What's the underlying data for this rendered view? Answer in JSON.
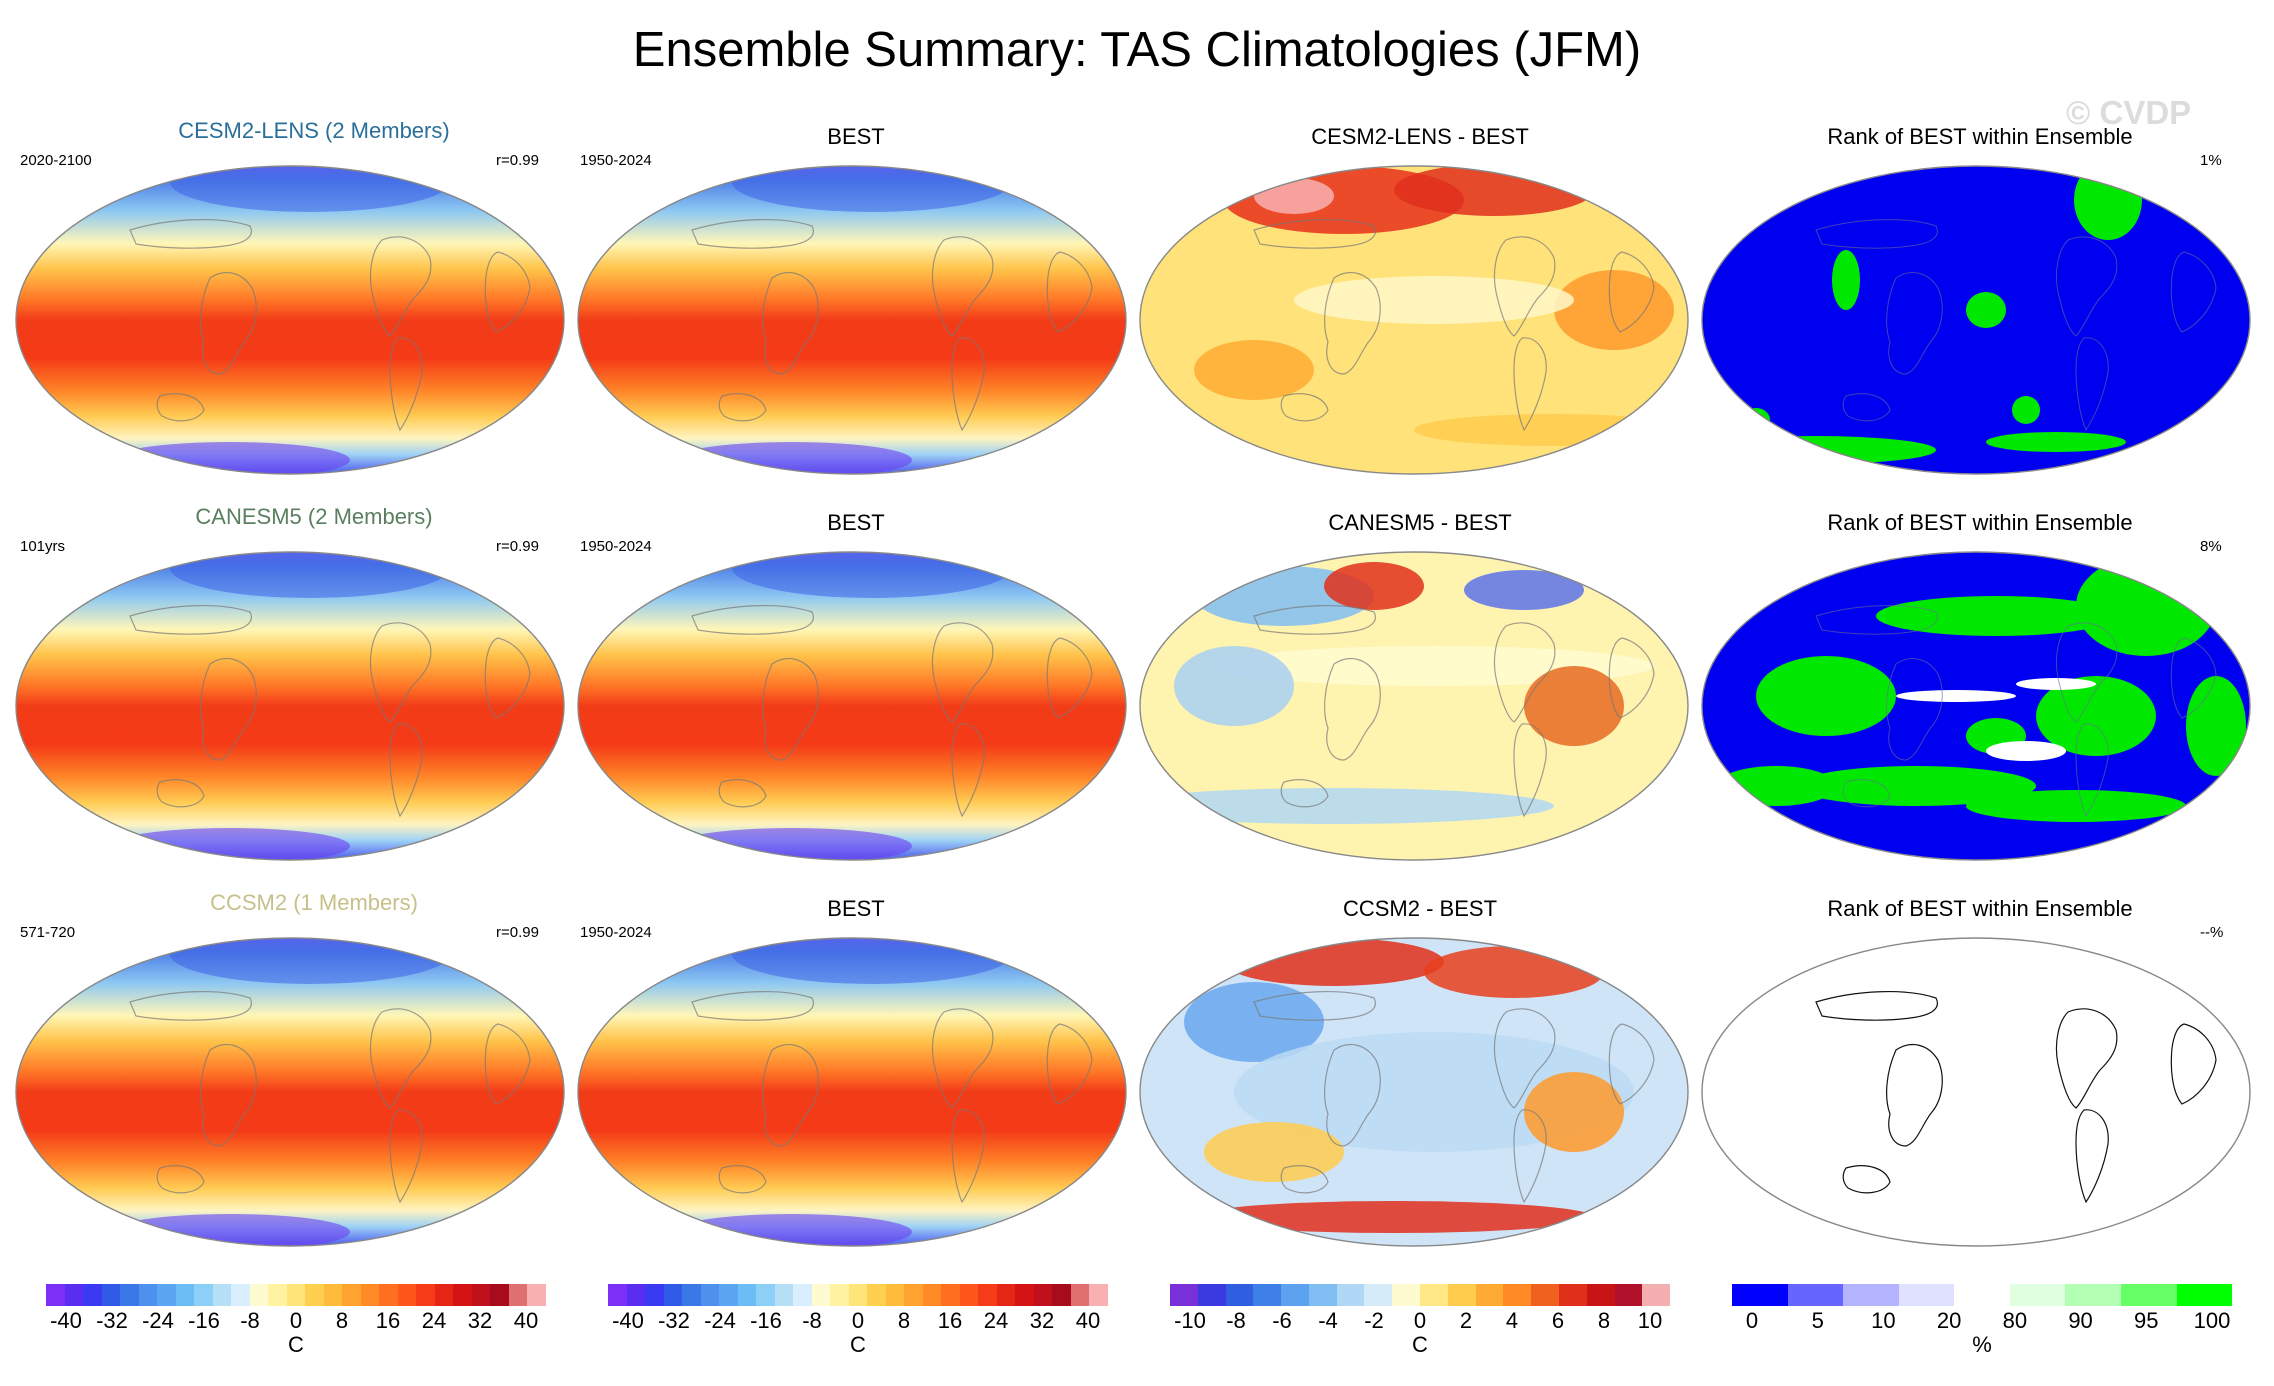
{
  "title": "Ensemble Summary: TAS Climatologies (JFM)",
  "watermark": "© CVDP",
  "rows": [
    {
      "model_title": "CESM2-LENS (2 Members)",
      "model_period": "2020-2100",
      "corr": "r=0.99",
      "obs_title": "BEST",
      "obs_period": "1950-2024",
      "diff_title": "CESM2-LENS - BEST",
      "rank_title": "Rank of BEST within Ensemble",
      "rank_pct": "1%"
    },
    {
      "model_title": "CANESM5 (2 Members)",
      "model_period": "101yrs",
      "corr": "r=0.99",
      "obs_title": "BEST",
      "obs_period": "1950-2024",
      "diff_title": "CANESM5 - BEST",
      "rank_title": "Rank of BEST within Ensemble",
      "rank_pct": "8%"
    },
    {
      "model_title": "CCSM2 (1 Members)",
      "model_period": "571-720",
      "corr": "r=0.99",
      "obs_title": "BEST",
      "obs_period": "1950-2024",
      "diff_title": "CCSM2 - BEST",
      "rank_title": "Rank of BEST within Ensemble",
      "rank_pct": "--%"
    }
  ],
  "colorbars": {
    "climatology": {
      "unit": "C",
      "ticks": [
        "-40",
        "-32",
        "-24",
        "-16",
        "-8",
        "0",
        "8",
        "16",
        "24",
        "32",
        "40"
      ],
      "colors": [
        "#7b2ff7",
        "#5a2ef0",
        "#3a3af2",
        "#2f5be8",
        "#3a78e8",
        "#4e90ee",
        "#5aa6f2",
        "#6cbcf6",
        "#8ccff7",
        "#b6e0f5",
        "#d9efff",
        "#fffbd0",
        "#fff2a0",
        "#ffe479",
        "#ffd04f",
        "#ffbc3c",
        "#ffa230",
        "#ff8a26",
        "#ff6f1f",
        "#ff561b",
        "#f63b18",
        "#e52516",
        "#d41414",
        "#c0101c",
        "#a80c1c",
        "#e07070",
        "#f8b0b0"
      ]
    },
    "climatology_obs": {
      "unit": "C",
      "ticks": [
        "-40",
        "-32",
        "-24",
        "-16",
        "-8",
        "0",
        "8",
        "16",
        "24",
        "32",
        "40"
      ],
      "colors": [
        "#7b2ff7",
        "#5a2ef0",
        "#3a3af2",
        "#2f5be8",
        "#3a78e8",
        "#4e90ee",
        "#5aa6f2",
        "#6cbcf6",
        "#8ccff7",
        "#b6e0f5",
        "#d9efff",
        "#fffbd0",
        "#fff2a0",
        "#ffe479",
        "#ffd04f",
        "#ffbc3c",
        "#ffa230",
        "#ff8a26",
        "#ff6f1f",
        "#ff561b",
        "#f63b18",
        "#e52516",
        "#d41414",
        "#c0101c",
        "#a80c1c",
        "#e07070",
        "#f8b0b0"
      ]
    },
    "difference": {
      "unit": "C",
      "ticks": [
        "-10",
        "-8",
        "-6",
        "-4",
        "-2",
        "0",
        "2",
        "4",
        "6",
        "8",
        "10"
      ],
      "colors": [
        "#7a30d8",
        "#3a3ae0",
        "#2f5fe0",
        "#3f80e8",
        "#5ca2ef",
        "#80bdf3",
        "#b0d7f5",
        "#d6ebf8",
        "#fffbd0",
        "#ffe885",
        "#ffcc4d",
        "#ffaa33",
        "#ff8a26",
        "#f0601e",
        "#e0301a",
        "#c81414",
        "#b0102a",
        "#f4b0b0"
      ]
    },
    "rank": {
      "unit": "%",
      "ticks": [
        "0",
        "5",
        "10",
        "20",
        "80",
        "90",
        "95",
        "100"
      ],
      "colors": [
        "#0000ff",
        "#6666ff",
        "#b3b3ff",
        "#e0e0ff",
        "#ffffff",
        "#e0ffe0",
        "#b3ffb3",
        "#66ff66",
        "#00ff00"
      ]
    }
  }
}
